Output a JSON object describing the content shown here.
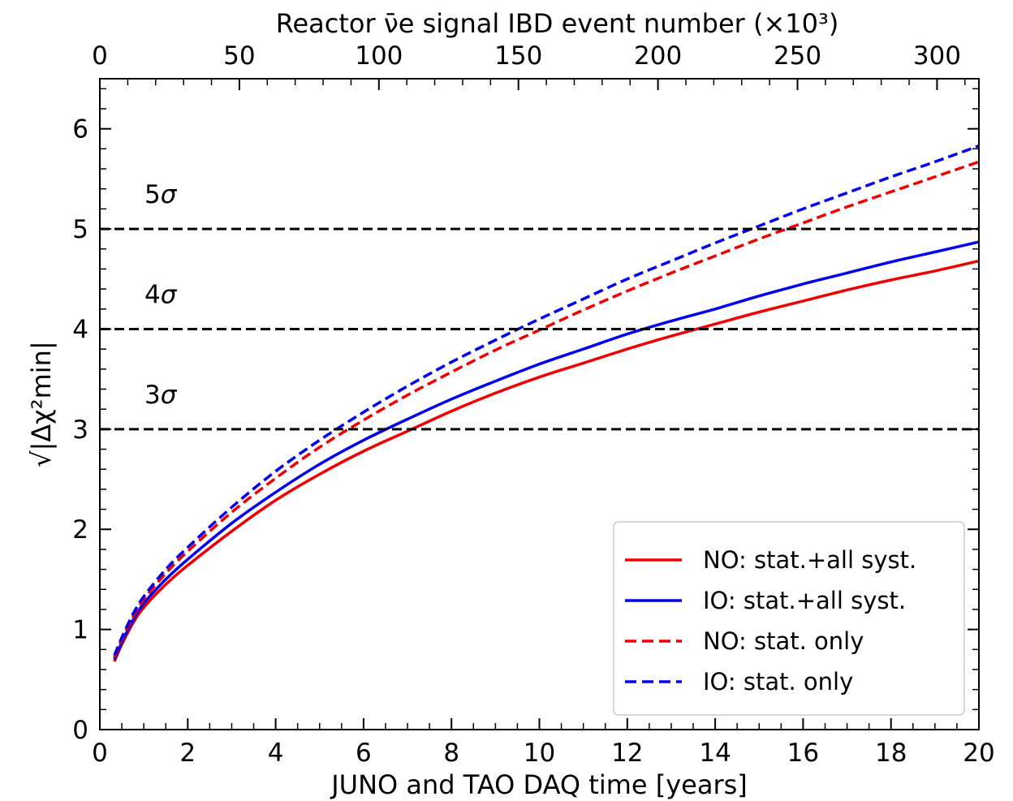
{
  "chart_data": {
    "type": "line",
    "xlabel": "JUNO and TAO DAQ time [years]",
    "xlim": [
      0,
      20
    ],
    "x_ticks": [
      "0",
      "2",
      "4",
      "6",
      "8",
      "10",
      "12",
      "14",
      "16",
      "18",
      "20"
    ],
    "x_tick_values": [
      0,
      2,
      4,
      6,
      8,
      10,
      12,
      14,
      16,
      18,
      20
    ],
    "top_xlabel": "Reactor ν̄e signal IBD event number (×10³)",
    "top_xlim": [
      0,
      315
    ],
    "top_ticks": [
      "0",
      "50",
      "100",
      "150",
      "200",
      "250",
      "300"
    ],
    "top_tick_values": [
      0,
      50,
      100,
      150,
      200,
      250,
      300
    ],
    "ylabel": "√|Δχ²min|",
    "ylim": [
      0,
      6.5
    ],
    "y_ticks": [
      "0",
      "1",
      "2",
      "3",
      "4",
      "5",
      "6"
    ],
    "y_tick_values": [
      0,
      1,
      2,
      3,
      4,
      5,
      6
    ],
    "grid": false,
    "legend_position": "bottom-right",
    "reference_lines": [
      {
        "y": 3,
        "label": "3σ",
        "color": "#000000"
      },
      {
        "y": 4,
        "label": "4σ",
        "color": "#000000"
      },
      {
        "y": 5,
        "label": "5σ",
        "color": "#000000"
      }
    ],
    "x": [
      0.33,
      0.5,
      0.75,
      1,
      1.5,
      2,
      3,
      4,
      5,
      6,
      7,
      8,
      9,
      10,
      11,
      12,
      13,
      14,
      15,
      16,
      17,
      18,
      19,
      20
    ],
    "series": [
      {
        "name": "NO: stat.+all syst.",
        "color": "#ee0000",
        "dash": "solid",
        "values": [
          0.68,
          0.85,
          1.06,
          1.22,
          1.45,
          1.64,
          1.98,
          2.29,
          2.55,
          2.78,
          2.98,
          3.18,
          3.36,
          3.52,
          3.66,
          3.8,
          3.93,
          4.05,
          4.17,
          4.28,
          4.39,
          4.49,
          4.58,
          4.68
        ]
      },
      {
        "name": "IO: stat.+all syst.",
        "color": "#0000ee",
        "dash": "solid",
        "values": [
          0.7,
          0.87,
          1.09,
          1.26,
          1.5,
          1.7,
          2.06,
          2.37,
          2.65,
          2.89,
          3.1,
          3.3,
          3.48,
          3.65,
          3.8,
          3.95,
          4.08,
          4.2,
          4.33,
          4.45,
          4.56,
          4.67,
          4.77,
          4.87
        ]
      },
      {
        "name": "NO: stat. only",
        "color": "#ee0000",
        "dash": "dashed",
        "values": [
          0.72,
          0.9,
          1.12,
          1.3,
          1.56,
          1.78,
          2.17,
          2.51,
          2.82,
          3.09,
          3.34,
          3.57,
          3.79,
          3.99,
          4.19,
          4.38,
          4.56,
          4.73,
          4.9,
          5.06,
          5.22,
          5.37,
          5.52,
          5.67
        ]
      },
      {
        "name": "IO: stat. only",
        "color": "#0000ee",
        "dash": "dashed",
        "values": [
          0.74,
          0.92,
          1.15,
          1.33,
          1.6,
          1.82,
          2.22,
          2.58,
          2.89,
          3.17,
          3.43,
          3.67,
          3.89,
          4.1,
          4.3,
          4.5,
          4.68,
          4.86,
          5.03,
          5.2,
          5.36,
          5.52,
          5.67,
          5.83
        ]
      }
    ]
  }
}
